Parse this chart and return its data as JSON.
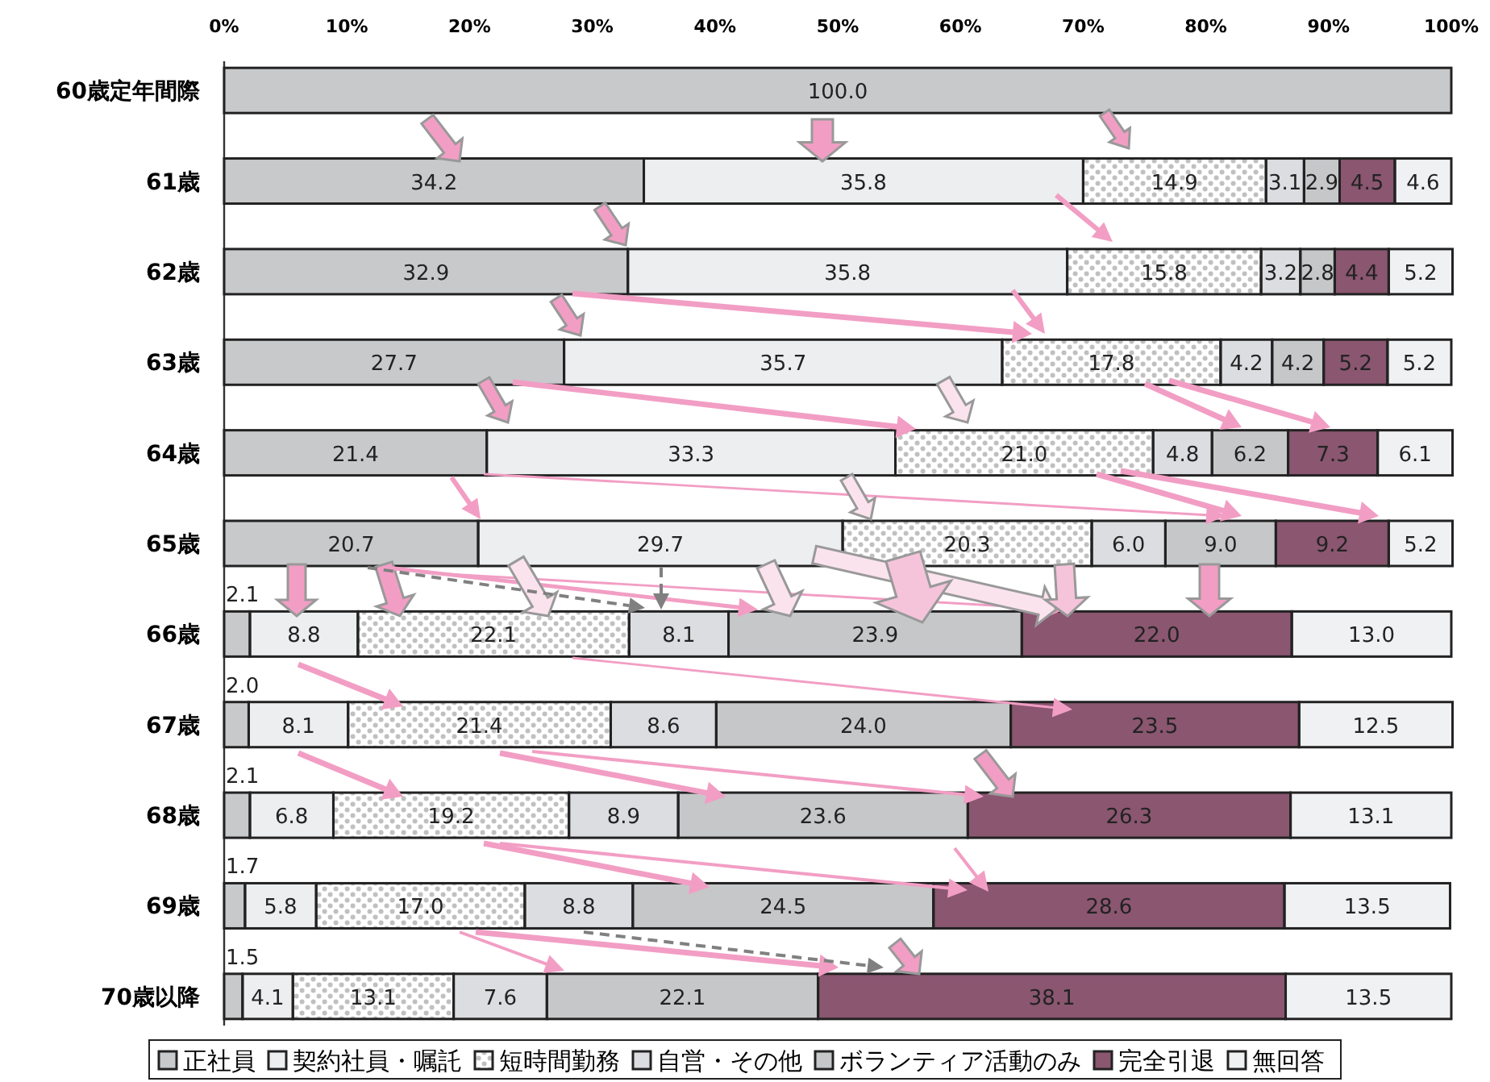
{
  "chart_data": {
    "type": "bar",
    "orientation": "horizontal",
    "stacked": true,
    "legend": "bottom",
    "categories": [
      "60歳定年間際",
      "61歳",
      "62歳",
      "63歳",
      "64歳",
      "65歳",
      "66歳",
      "67歳",
      "68歳",
      "69歳",
      "70歳以降"
    ],
    "xlim": [
      0,
      100
    ],
    "xticks": [
      {
        "value": 0,
        "label": "0%"
      },
      {
        "value": 10,
        "label": "10%"
      },
      {
        "value": 20,
        "label": "20%"
      },
      {
        "value": 30,
        "label": "30%"
      },
      {
        "value": 40,
        "label": "40%"
      },
      {
        "value": 50,
        "label": "50%"
      },
      {
        "value": 60,
        "label": "60%"
      },
      {
        "value": 70,
        "label": "70%"
      },
      {
        "value": 80,
        "label": "80%"
      },
      {
        "value": 90,
        "label": "90%"
      },
      {
        "value": 100,
        "label": "100%"
      }
    ],
    "series": [
      {
        "name": "正社員",
        "color": "#c8c9cb",
        "values": [
          100.0,
          34.2,
          32.9,
          27.7,
          21.4,
          20.7,
          2.1,
          2.0,
          2.1,
          1.7,
          1.5
        ],
        "value_labels": [
          "100.0",
          "34.2",
          "32.9",
          "27.7",
          "21.4",
          "20.7",
          "2.1",
          "2.0",
          "2.1",
          "1.7",
          "1.5"
        ]
      },
      {
        "name": "契約社員・嘱託",
        "color": "#eceef0",
        "values": [
          null,
          35.8,
          35.8,
          35.7,
          33.3,
          29.7,
          8.8,
          8.1,
          6.8,
          5.8,
          4.1
        ],
        "value_labels": [
          null,
          "35.8",
          "35.8",
          "35.7",
          "33.3",
          "29.7",
          "8.8",
          "8.1",
          "6.8",
          "5.8",
          "4.1"
        ]
      },
      {
        "name": "短時間勤務",
        "color": "#c0c0c0",
        "values": [
          null,
          14.9,
          15.8,
          17.8,
          21.0,
          20.3,
          22.1,
          21.4,
          19.2,
          17.0,
          13.1
        ],
        "value_labels": [
          null,
          "14.9",
          "15.8",
          "17.8",
          "21.0",
          "20.3",
          "22.1",
          "21.4",
          "19.2",
          "17.0",
          "13.1"
        ]
      },
      {
        "name": "自営・その他",
        "color": "#dcdde0",
        "values": [
          null,
          3.1,
          3.2,
          4.2,
          4.8,
          6.0,
          8.1,
          8.6,
          8.9,
          8.8,
          7.6
        ],
        "value_labels": [
          null,
          "3.1",
          "3.2",
          "4.2",
          "4.8",
          "6.0",
          "8.1",
          "8.6",
          "8.9",
          "8.8",
          "7.6"
        ]
      },
      {
        "name": "ボランティア活動のみ",
        "color": "#c6c7c9",
        "values": [
          null,
          2.9,
          2.8,
          4.2,
          6.2,
          9.0,
          23.9,
          24.0,
          23.6,
          24.5,
          22.1
        ],
        "value_labels": [
          null,
          "2.9",
          "2.8",
          "4.2",
          "6.2",
          "9.0",
          "23.9",
          "24.0",
          "23.6",
          "24.5",
          "22.1"
        ]
      },
      {
        "name": "完全引退",
        "color": "#8a5670",
        "values": [
          null,
          4.5,
          4.4,
          5.2,
          7.3,
          9.2,
          22.0,
          23.5,
          26.3,
          28.6,
          38.1
        ],
        "value_labels": [
          null,
          "4.5",
          "4.4",
          "5.2",
          "7.3",
          "9.2",
          "22.0",
          "23.5",
          "26.3",
          "28.6",
          "38.1"
        ]
      },
      {
        "name": "無回答",
        "color": "#f0f1f3",
        "values": [
          null,
          4.6,
          5.2,
          5.2,
          6.1,
          5.2,
          13.0,
          12.5,
          13.1,
          13.5,
          13.5
        ],
        "value_labels": [
          null,
          "4.6",
          "5.2",
          "5.2",
          "6.1",
          "5.2",
          "13.0",
          "12.5",
          "13.1",
          "13.5",
          "13.5"
        ]
      }
    ]
  }
}
